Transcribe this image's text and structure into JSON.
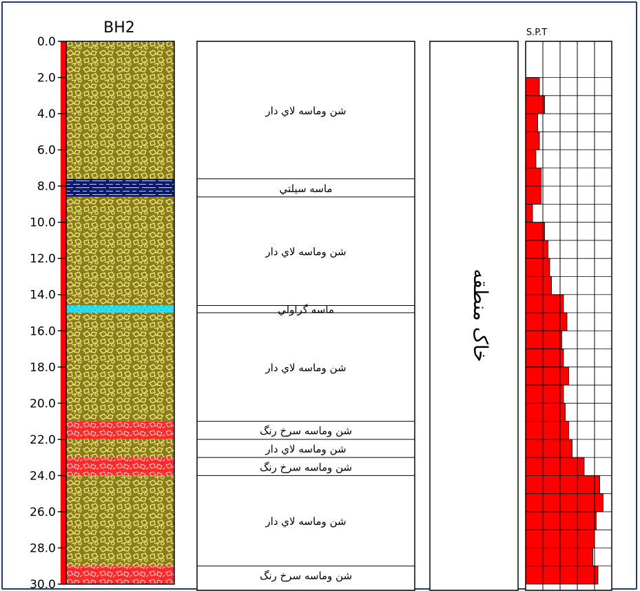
{
  "borehole": {
    "title": "BH2",
    "depth_min": 0,
    "depth_max": 30,
    "depth_ticks": [
      "0.0",
      "2.0",
      "4.0",
      "6.0",
      "8.0",
      "10.0",
      "12.0",
      "14.0",
      "16.0",
      "18.0",
      "20.0",
      "22.0",
      "24.0",
      "26.0",
      "28.0",
      "30.0"
    ],
    "water_line_color": "#ff0000"
  },
  "layers": [
    {
      "top": 0.0,
      "bottom": 7.6,
      "pattern": "gravel-olive",
      "label": "شن وماسه لاي دار"
    },
    {
      "top": 7.6,
      "bottom": 8.6,
      "pattern": "silt-blue",
      "label": "ماسه سيلتي"
    },
    {
      "top": 8.6,
      "bottom": 14.6,
      "pattern": "gravel-olive",
      "label": "شن وماسه لاي دار"
    },
    {
      "top": 14.6,
      "bottom": 15.0,
      "pattern": "sand-cyan",
      "label": "ماسه گراولي"
    },
    {
      "top": 15.0,
      "bottom": 21.0,
      "pattern": "gravel-olive",
      "label": "شن وماسه لاي دار"
    },
    {
      "top": 21.0,
      "bottom": 22.0,
      "pattern": "gravel-red",
      "label": "شن وماسه سرخ رنگ"
    },
    {
      "top": 22.0,
      "bottom": 23.0,
      "pattern": "gravel-olive",
      "label": "شن وماسه لاي دار"
    },
    {
      "top": 23.0,
      "bottom": 24.0,
      "pattern": "gravel-red",
      "label": "شن وماسه سرخ رنگ"
    },
    {
      "top": 24.0,
      "bottom": 29.0,
      "pattern": "gravel-olive",
      "label": "شن وماسه لاي دار"
    },
    {
      "top": 29.0,
      "bottom": 30.0,
      "pattern": "gravel-red",
      "label": "شن وماسه سرخ رنگ"
    }
  ],
  "column3": {
    "label": "خاک منطقه"
  },
  "spt": {
    "title": "S.P.T",
    "bar_color": "#ff0000",
    "scale_max": 50,
    "gridlines": [
      10,
      20,
      30,
      40
    ],
    "intervals": [
      {
        "top": 2.0,
        "bottom": 3.0,
        "value": 8
      },
      {
        "top": 3.0,
        "bottom": 4.0,
        "value": 11
      },
      {
        "top": 4.0,
        "bottom": 5.0,
        "value": 7
      },
      {
        "top": 5.0,
        "bottom": 6.0,
        "value": 8
      },
      {
        "top": 6.0,
        "bottom": 7.0,
        "value": 6
      },
      {
        "top": 7.0,
        "bottom": 8.0,
        "value": 9
      },
      {
        "top": 8.0,
        "bottom": 9.0,
        "value": 9
      },
      {
        "top": 9.0,
        "bottom": 10.0,
        "value": 4
      },
      {
        "top": 10.0,
        "bottom": 11.0,
        "value": 11
      },
      {
        "top": 11.0,
        "bottom": 12.0,
        "value": 13
      },
      {
        "top": 12.0,
        "bottom": 13.0,
        "value": 14
      },
      {
        "top": 13.0,
        "bottom": 14.0,
        "value": 15
      },
      {
        "top": 14.0,
        "bottom": 15.0,
        "value": 22
      },
      {
        "top": 15.0,
        "bottom": 16.0,
        "value": 24
      },
      {
        "top": 16.0,
        "bottom": 17.0,
        "value": 21
      },
      {
        "top": 17.0,
        "bottom": 18.0,
        "value": 22
      },
      {
        "top": 18.0,
        "bottom": 19.0,
        "value": 25
      },
      {
        "top": 19.0,
        "bottom": 20.0,
        "value": 22
      },
      {
        "top": 20.0,
        "bottom": 21.0,
        "value": 23
      },
      {
        "top": 21.0,
        "bottom": 22.0,
        "value": 25
      },
      {
        "top": 22.0,
        "bottom": 23.0,
        "value": 27
      },
      {
        "top": 23.0,
        "bottom": 24.0,
        "value": 34
      },
      {
        "top": 24.0,
        "bottom": 25.0,
        "value": 43
      },
      {
        "top": 25.0,
        "bottom": 26.0,
        "value": 45
      },
      {
        "top": 26.0,
        "bottom": 27.0,
        "value": 41
      },
      {
        "top": 27.0,
        "bottom": 28.0,
        "value": 40
      },
      {
        "top": 28.0,
        "bottom": 29.0,
        "value": 39
      },
      {
        "top": 29.0,
        "bottom": 30.0,
        "value": 42
      }
    ]
  },
  "colors": {
    "gravel_olive": "#8a7d1f",
    "gravel_red": "#ff2a2a",
    "silt_blue": "#0d1a6e",
    "sand_cyan": "#22e4f4",
    "line": "#000000",
    "frame": "#1f3d6b"
  }
}
